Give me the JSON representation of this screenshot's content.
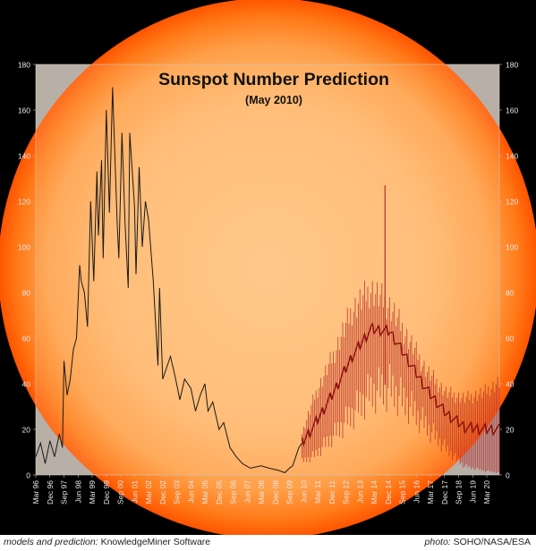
{
  "colors": {
    "background": "#000000",
    "sun_core": "#ffc07a",
    "sun_edge": "#ff5a00",
    "plot_area": "#b9b0a8",
    "observed_line": "#1a1a1a",
    "prediction_line": "#8a0d0d",
    "prediction_band": "#b02020",
    "axis_text": "#e8e8e8"
  },
  "credits": {
    "left_label": "models and prediction:",
    "left_value": "KnowledgeMiner Software",
    "right_label": "photo:",
    "right_value": "SOHO/NASA/ESA"
  },
  "chart_data": {
    "type": "line",
    "title": "Sunspot Number Prediction",
    "subtitle": "(May 2010)",
    "xlabel": "",
    "ylabel": "",
    "ylim": [
      0,
      180
    ],
    "yticks": [
      0,
      20,
      40,
      60,
      80,
      100,
      120,
      140,
      160,
      180
    ],
    "grid": false,
    "legend": "none",
    "x_tick_labels": [
      "Mar 96",
      "Dec 96",
      "Sep 97",
      "Jun 98",
      "Mar 99",
      "Dec 99",
      "Sep 00",
      "Jun 01",
      "Mar 02",
      "Dec 02",
      "Sep 03",
      "Jun 04",
      "Mar 05",
      "Dec 05",
      "Sep 06",
      "Jun 07",
      "Mar 08",
      "Dec 08",
      "Sep 09",
      "Jun 10",
      "Mar 11",
      "Dec 11",
      "Sep 12",
      "Jun 13",
      "Mar 14",
      "Dec 14",
      "Sep 15",
      "Jun 16",
      "Mar 17",
      "Dec 17",
      "Sep 18",
      "Jun 19",
      "Mar 20"
    ],
    "x_start": "Mar 96",
    "x_end": "Nov 20",
    "series": [
      {
        "role": "observed",
        "x": [
          "Mar 96",
          "Jun 96",
          "Sep 96",
          "Dec 96",
          "Mar 97",
          "Jun 97",
          "Aug 97",
          "Sep 97",
          "Nov 97",
          "Jan 98",
          "Mar 98",
          "May 98",
          "Jul 98",
          "Aug 98",
          "Oct 98",
          "Dec 98",
          "Feb 99",
          "Apr 99",
          "Jun 99",
          "Jul 99",
          "Sep 99",
          "Oct 99",
          "Dec 99",
          "Feb 00",
          "Apr 00",
          "Jul 00",
          "Aug 00",
          "Oct 00",
          "Dec 00",
          "Feb 01",
          "Mar 01",
          "Jun 01",
          "Jul 01",
          "Sep 01",
          "Nov 01",
          "Jan 02",
          "Mar 02",
          "Jun 02",
          "Sep 02",
          "Oct 02",
          "Dec 02",
          "Mar 03",
          "May 03",
          "Aug 03",
          "Nov 03",
          "Feb 04",
          "Jun 04",
          "Sep 04",
          "Dec 04",
          "Mar 05",
          "May 05",
          "Aug 05",
          "Dec 05",
          "Mar 06",
          "Jul 06",
          "Nov 06",
          "Mar 07",
          "Aug 07",
          "Mar 08",
          "Aug 08",
          "Feb 09",
          "Jun 09",
          "Sep 09",
          "Nov 09",
          "Jan 10",
          "Mar 10",
          "May 10"
        ],
        "y": [
          8,
          14,
          5,
          15,
          8,
          18,
          12,
          50,
          35,
          42,
          55,
          60,
          92,
          85,
          80,
          65,
          120,
          85,
          133,
          105,
          138,
          95,
          160,
          115,
          170,
          110,
          95,
          150,
          110,
          82,
          150,
          118,
          88,
          135,
          100,
          120,
          112,
          85,
          48,
          82,
          42,
          48,
          52,
          43,
          33,
          42,
          38,
          28,
          35,
          40,
          28,
          32,
          20,
          23,
          12,
          8,
          5,
          3,
          4,
          3,
          2,
          1,
          3,
          4,
          8,
          12,
          14
        ]
      },
      {
        "role": "prediction_center",
        "x": [
          "May 10",
          "Jan 11",
          "Jan 12",
          "Jan 13",
          "Jan 14",
          "Jan 15",
          "Jan 16",
          "Jan 17",
          "Jan 18",
          "Jan 19",
          "Jan 20",
          "Nov 20"
        ],
        "y": [
          14,
          22,
          36,
          52,
          64,
          63,
          50,
          37,
          27,
          21,
          20,
          20
        ]
      },
      {
        "role": "prediction_upper",
        "x": [
          "May 10",
          "Jan 11",
          "Jan 12",
          "Jan 13",
          "Jan 14",
          "Jan 15",
          "Jan 16",
          "Jan 17",
          "Jan 18",
          "Jan 19",
          "Jan 20",
          "Nov 20"
        ],
        "y": [
          20,
          38,
          58,
          80,
          90,
          82,
          66,
          50,
          40,
          37,
          40,
          45
        ]
      },
      {
        "role": "prediction_lower",
        "x": [
          "May 10",
          "Jan 11",
          "Jan 12",
          "Jan 13",
          "Jan 14",
          "Jan 15",
          "Jan 16",
          "Jan 17",
          "Jan 18",
          "Jan 19",
          "Jan 20",
          "Nov 20"
        ],
        "y": [
          6,
          9,
          18,
          28,
          38,
          40,
          32,
          22,
          12,
          4,
          2,
          1
        ]
      },
      {
        "role": "prediction_peak",
        "x": [
          "Oct 14"
        ],
        "y": [
          127
        ]
      }
    ]
  }
}
